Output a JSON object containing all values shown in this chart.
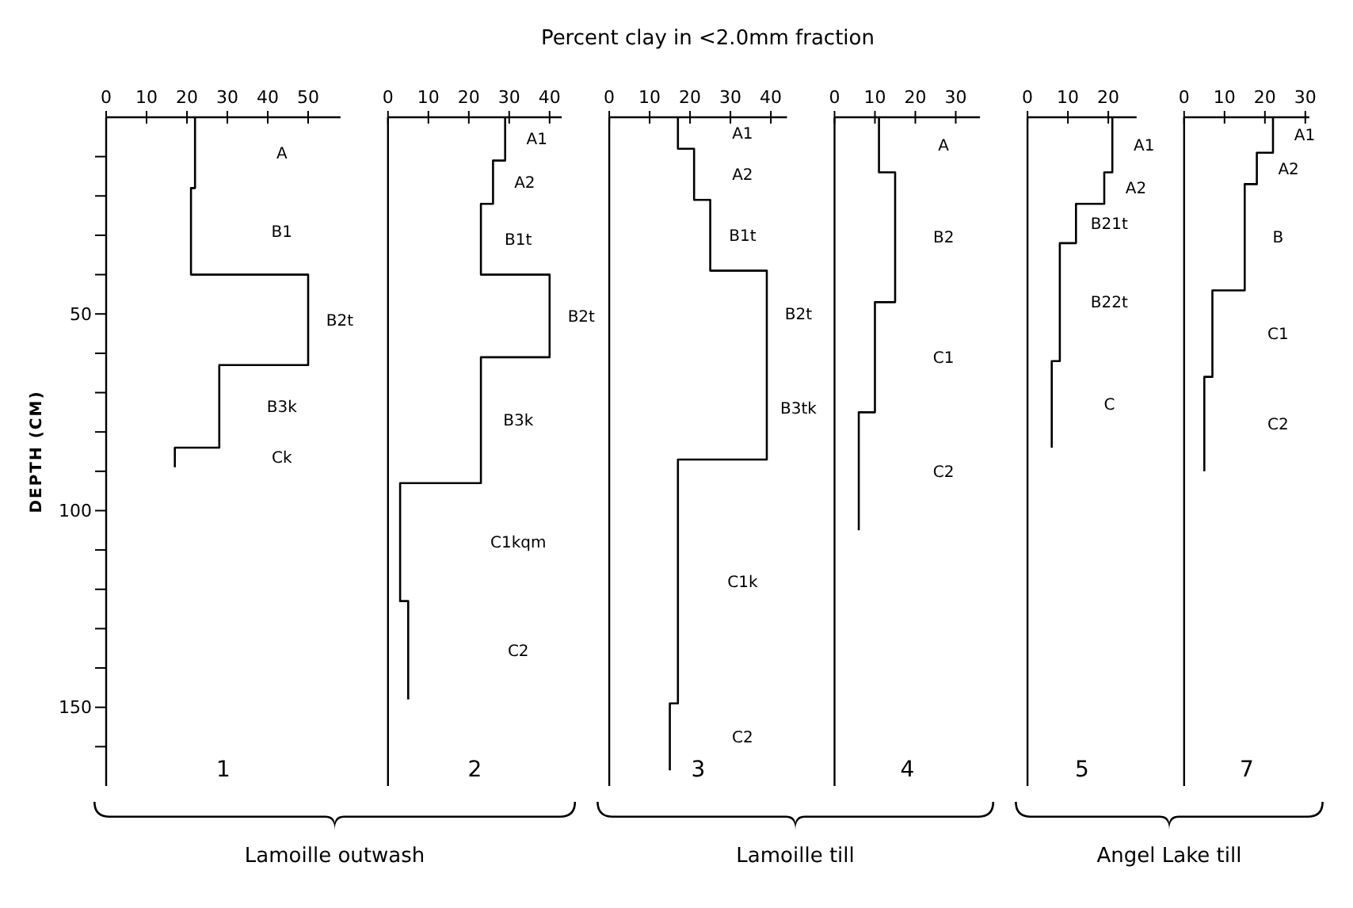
{
  "chart_data": [
    {
      "type": "line",
      "title": "1",
      "ylabel": "DEPTH (CM)",
      "xlim": [
        0,
        58
      ],
      "xticks": [
        0,
        10,
        20,
        30,
        40,
        50
      ],
      "ylim": [
        170,
        0
      ],
      "yticks": [
        {
          "value": 10,
          "label": null
        },
        {
          "value": 20,
          "label": null
        },
        {
          "value": 30,
          "label": null
        },
        {
          "value": 40,
          "label": null
        },
        50,
        {
          "value": 60,
          "label": null
        },
        {
          "value": 70,
          "label": null
        },
        {
          "value": 80,
          "label": null
        },
        {
          "value": 90,
          "label": null
        },
        100,
        {
          "value": 110,
          "label": null
        },
        {
          "value": 120,
          "label": null
        },
        {
          "value": 130,
          "label": null
        },
        {
          "value": 140,
          "label": null
        },
        150,
        {
          "value": 160,
          "label": null
        }
      ],
      "series": [
        {
          "color": "#000000",
          "x": [
            22,
            22,
            21,
            21,
            50,
            50,
            28,
            28,
            17,
            17
          ],
          "values": [
            0,
            18,
            18,
            40,
            40,
            63,
            63,
            84,
            84,
            89
          ]
        }
      ],
      "annotations": [
        "Percent clay in <2.0mm fraction",
        "Lamoille outwash",
        "A",
        "B1",
        "B2t",
        "B3k",
        "Ck"
      ]
    },
    {
      "type": "line",
      "title": "2",
      "tick_labels": "x",
      "xlim": [
        0,
        43
      ],
      "xticks": [
        0,
        10,
        20,
        30,
        40
      ],
      "ylim": [
        170,
        0
      ],
      "series": [
        {
          "color": "#000000",
          "x": [
            29,
            29,
            26,
            26,
            23,
            23,
            40,
            40,
            23,
            23,
            3,
            3,
            5,
            5
          ],
          "values": [
            0,
            11,
            11,
            22,
            22,
            40,
            40,
            61,
            61,
            93,
            93,
            123,
            123,
            148
          ]
        }
      ],
      "annotations": [
        "A1",
        "A2",
        "B1t",
        "B2t",
        "B3k",
        "C1kqm",
        "C2"
      ]
    },
    {
      "type": "line",
      "title": "3",
      "tick_labels": "x",
      "xlim": [
        0,
        44
      ],
      "xticks": [
        0,
        10,
        20,
        30,
        40
      ],
      "ylim": [
        170,
        0
      ],
      "series": [
        {
          "color": "#000000",
          "x": [
            17,
            17,
            21,
            21,
            25,
            25,
            39,
            39,
            39,
            17,
            17,
            15,
            15
          ],
          "values": [
            0,
            8,
            8,
            21,
            21,
            39,
            39,
            61,
            87,
            87,
            149,
            149,
            166
          ]
        }
      ],
      "annotations": [
        "Lamoille till",
        "A1",
        "A2",
        "B1t",
        "B2t",
        "B3tk",
        "C1k",
        "C2"
      ]
    },
    {
      "type": "line",
      "title": "4",
      "tick_labels": "x",
      "xlim": [
        0,
        36
      ],
      "xticks": [
        0,
        10,
        20,
        30
      ],
      "ylim": [
        170,
        0
      ],
      "series": [
        {
          "color": "#000000",
          "x": [
            11,
            11,
            15,
            15,
            10,
            10,
            6,
            6
          ],
          "values": [
            0,
            14,
            14,
            47,
            47,
            75,
            75,
            105
          ]
        }
      ],
      "annotations": [
        "A",
        "B2",
        "C1",
        "C2"
      ]
    },
    {
      "type": "line",
      "title": "5",
      "tick_labels": "x",
      "xlim": [
        0,
        27
      ],
      "xticks": [
        0,
        10,
        20
      ],
      "ylim": [
        170,
        0
      ],
      "series": [
        {
          "color": "#000000",
          "x": [
            21,
            21,
            19,
            19,
            12,
            12,
            8,
            8,
            6,
            6
          ],
          "values": [
            0,
            14,
            14,
            22,
            22,
            32,
            32,
            62,
            62,
            84
          ]
        }
      ],
      "annotations": [
        "Angel Lake till",
        "A1",
        "A2",
        "B21t",
        "B22t",
        "C"
      ]
    },
    {
      "type": "line",
      "title": "7",
      "tick_labels": "x",
      "xlim": [
        0,
        31
      ],
      "xticks": [
        0,
        10,
        20,
        30
      ],
      "ylim": [
        170,
        0
      ],
      "series": [
        {
          "color": "#000000",
          "x": [
            22,
            22,
            18,
            18,
            15,
            15,
            7,
            7,
            5,
            5
          ],
          "values": [
            0,
            9,
            9,
            17,
            17,
            44,
            44,
            66,
            66,
            90
          ]
        }
      ],
      "annotations": [
        "A1",
        "A2",
        "B",
        "C1",
        "C2"
      ]
    }
  ]
}
